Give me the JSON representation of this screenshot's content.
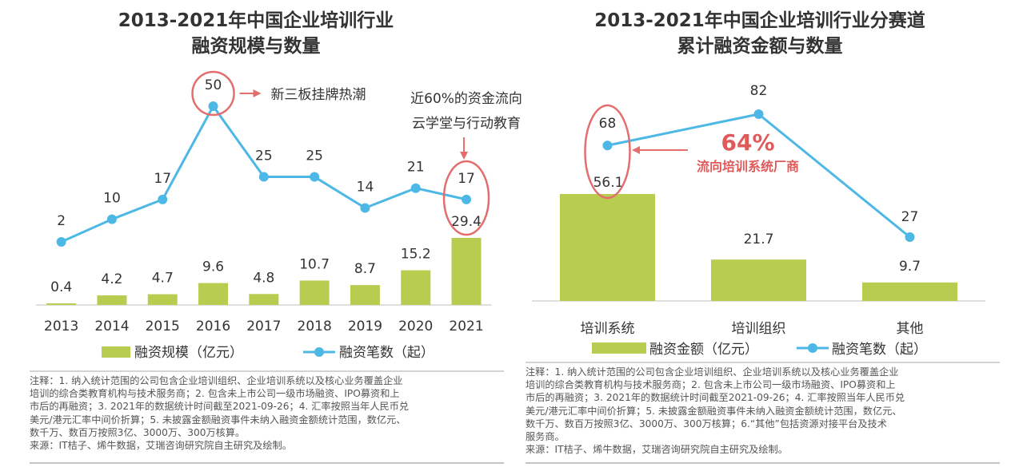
{
  "colors": {
    "bar": "#b8cd4f",
    "line": "#4db8e6",
    "highlight": "#e26e6e",
    "annotation_text": "#e05a5a",
    "text": "#333333"
  },
  "left": {
    "title_line1": "2013-2021年中国企业培训行业",
    "title_line2": "融资规模与数量",
    "annotation1": "新三板挂牌热潮",
    "annotation2_line1": "近60%的资金流向",
    "annotation2_line2": "云学堂与行动教育",
    "legend_bar": "融资规模（亿元）",
    "legend_line": "融资笔数（起）",
    "note_lines": [
      "注释：1. 纳入统计范围的公司包含企业培训组织、企业培训系统以及核心业务覆盖企业",
      "培训的综合类教育机构与技术服务商；2. 包含未上市公司一级市场融资、IPO募资和上",
      "市后的再融资；3. 2021年的数据统计时间截至2021-09-26；4. 汇率按照当年人民币兑",
      "美元/港元汇率中间价折算；5. 未披露金额融资事件未纳入融资金额统计范围，数亿元、",
      "数千万、数百万按照3亿、3000万、300万核算。"
    ],
    "source": "来源：IT桔子、烯牛数据，艾瑞咨询研究院自主研究及绘制。"
  },
  "right": {
    "title_line1": "2013-2021年中国企业培训行业分赛道",
    "title_line2": "累计融资金额与数量",
    "big_percent": "64%",
    "annotation": "流向培训系统厂商",
    "legend_bar": "融资金额（亿元）",
    "legend_line": "融资笔数（起）",
    "note_lines": [
      "注释：1. 纳入统计范围的公司包含企业培训组织、企业培训系统以及核心业务覆盖企业",
      "培训的综合类教育机构与技术服务商；2. 包含未上市公司一级市场融资、IPO募资和上",
      "市后的再融资；3. 2021年的数据统计时间截至2021-09-26；4. 汇率按照当年人民币兑",
      "美元/港元汇率中间价折算；5. 未披露金额融资事件未纳入融资金额统计范围，数亿元、",
      "数千万、数百万按照3亿、3000万、300万核算；6.“其他”包括资源对接平台及技术",
      "服务商。"
    ],
    "source": "来源：IT桔子、烯牛数据，艾瑞咨询研究院自主研究及绘制。"
  },
  "chart_data": [
    {
      "type": "bar",
      "title": "2013-2021年中国企业培训行业融资规模与数量",
      "categories": [
        "2013",
        "2014",
        "2015",
        "2016",
        "2017",
        "2018",
        "2019",
        "2020",
        "2021"
      ],
      "series": [
        {
          "name": "融资规模（亿元）",
          "type": "bar",
          "values": [
            0.4,
            4.2,
            4.7,
            9.6,
            4.8,
            10.7,
            8.7,
            15.2,
            29.4
          ],
          "labels": [
            "0.4",
            "4.2",
            "4.7",
            "9.6",
            "4.8",
            "10.7",
            "8.7",
            "15.2",
            "29.4"
          ]
        },
        {
          "name": "融资笔数（起）",
          "type": "line",
          "values": [
            2,
            10,
            17,
            50,
            25,
            25,
            14,
            21,
            17
          ],
          "labels": [
            "2",
            "10",
            "17",
            "50",
            "25",
            "25",
            "14",
            "21",
            "17"
          ]
        }
      ],
      "grid": false,
      "legend": "bottom"
    },
    {
      "type": "bar",
      "title": "2013-2021年中国企业培训行业分赛道累计融资金额与数量",
      "categories": [
        "培训系统",
        "培训组织",
        "其他"
      ],
      "series": [
        {
          "name": "融资金额（亿元）",
          "type": "bar",
          "values": [
            56.1,
            21.7,
            9.7
          ],
          "labels": [
            "56.1",
            "21.7",
            "9.7"
          ]
        },
        {
          "name": "融资笔数（起）",
          "type": "line",
          "values": [
            68,
            82,
            27
          ],
          "labels": [
            "68",
            "82",
            "27"
          ]
        }
      ],
      "grid": false,
      "legend": "bottom"
    }
  ]
}
